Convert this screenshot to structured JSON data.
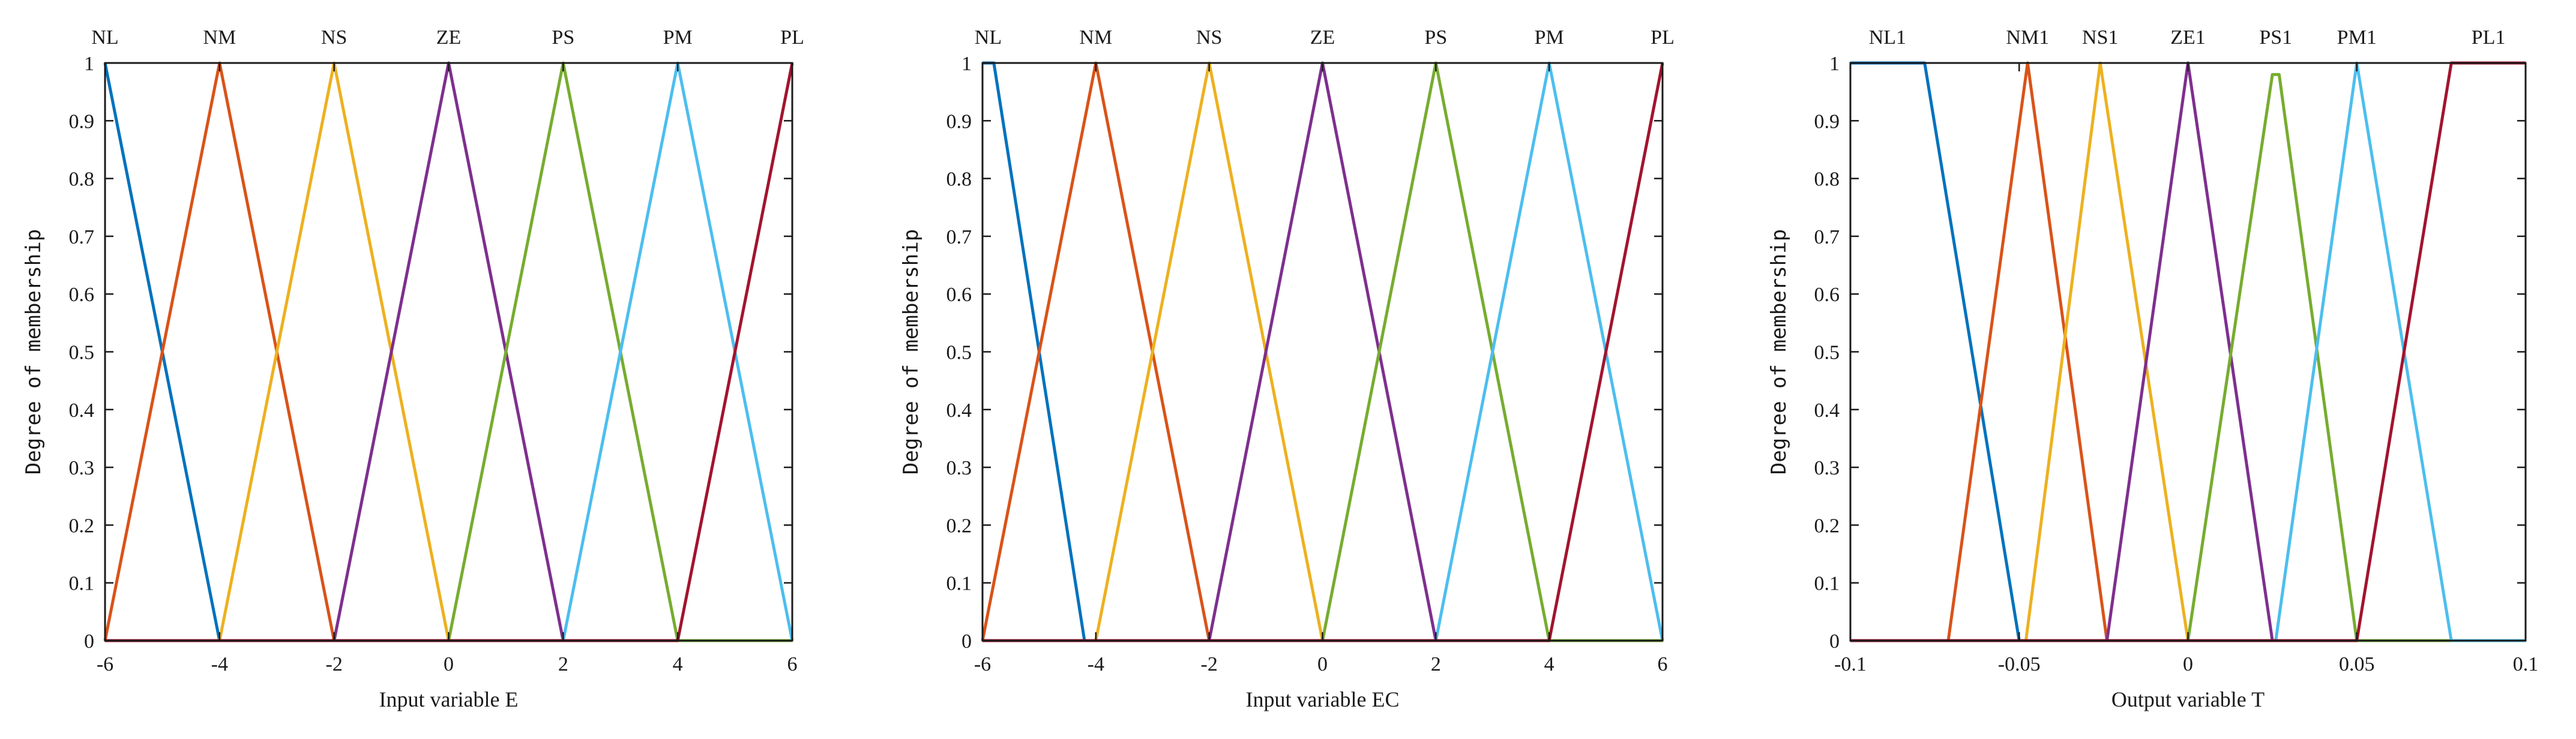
{
  "chart_data": [
    {
      "type": "line",
      "xlabel": "Input variable E",
      "ylabel": "Degree of membership",
      "xlim": [
        -6,
        6
      ],
      "ylim": [
        0,
        1
      ],
      "x_ticks": [
        -6,
        -4,
        -2,
        0,
        2,
        4,
        6
      ],
      "y_ticks": [
        0,
        0.1,
        0.2,
        0.3,
        0.4,
        0.5,
        0.6,
        0.7,
        0.8,
        0.9,
        1
      ],
      "grid": false,
      "series": [
        {
          "name": "NL",
          "color": "#0072BD",
          "points": [
            [
              -6,
              1
            ],
            [
              -4,
              0
            ],
            [
              6,
              0
            ]
          ]
        },
        {
          "name": "NM",
          "color": "#D95319",
          "points": [
            [
              -6,
              0
            ],
            [
              -4,
              1
            ],
            [
              -2,
              0
            ],
            [
              6,
              0
            ]
          ]
        },
        {
          "name": "NS",
          "color": "#EDB120",
          "points": [
            [
              -4,
              0
            ],
            [
              -2,
              1
            ],
            [
              0,
              0
            ]
          ]
        },
        {
          "name": "ZE",
          "color": "#7E2F8E",
          "points": [
            [
              -2,
              0
            ],
            [
              0,
              1
            ],
            [
              2,
              0
            ]
          ]
        },
        {
          "name": "PS",
          "color": "#77AC30",
          "points": [
            [
              0,
              0
            ],
            [
              2,
              1
            ],
            [
              4,
              0
            ],
            [
              6,
              0
            ]
          ]
        },
        {
          "name": "PM",
          "color": "#4DBEEE",
          "points": [
            [
              2,
              0
            ],
            [
              4,
              1
            ],
            [
              6,
              0
            ]
          ]
        },
        {
          "name": "PL",
          "color": "#A2142F",
          "points": [
            [
              -6,
              0
            ],
            [
              4,
              0
            ],
            [
              6,
              1
            ]
          ]
        }
      ]
    },
    {
      "type": "line",
      "xlabel": "Input variable EC",
      "ylabel": "Degree of membership",
      "xlim": [
        -6,
        6
      ],
      "ylim": [
        0,
        1
      ],
      "x_ticks": [
        -6,
        -4,
        -2,
        0,
        2,
        4,
        6
      ],
      "y_ticks": [
        0,
        0.1,
        0.2,
        0.3,
        0.4,
        0.5,
        0.6,
        0.7,
        0.8,
        0.9,
        1
      ],
      "grid": false,
      "series": [
        {
          "name": "NL",
          "color": "#0072BD",
          "points": [
            [
              -6,
              1
            ],
            [
              -5.8,
              1
            ],
            [
              -4.2,
              0
            ],
            [
              6,
              0
            ]
          ]
        },
        {
          "name": "NM",
          "color": "#D95319",
          "points": [
            [
              -6,
              0
            ],
            [
              -4,
              1
            ],
            [
              -2,
              0
            ],
            [
              6,
              0
            ]
          ]
        },
        {
          "name": "NS",
          "color": "#EDB120",
          "points": [
            [
              -4,
              0
            ],
            [
              -2,
              1
            ],
            [
              0,
              0
            ]
          ]
        },
        {
          "name": "ZE",
          "color": "#7E2F8E",
          "points": [
            [
              -2,
              0
            ],
            [
              0,
              1
            ],
            [
              2,
              0
            ]
          ]
        },
        {
          "name": "PS",
          "color": "#77AC30",
          "points": [
            [
              0,
              0
            ],
            [
              2,
              1
            ],
            [
              4,
              0
            ],
            [
              6,
              0
            ]
          ]
        },
        {
          "name": "PM",
          "color": "#4DBEEE",
          "points": [
            [
              2,
              0
            ],
            [
              4,
              1
            ],
            [
              6,
              0
            ]
          ]
        },
        {
          "name": "PL",
          "color": "#A2142F",
          "points": [
            [
              -6,
              0
            ],
            [
              4,
              0
            ],
            [
              6,
              1
            ]
          ]
        }
      ]
    },
    {
      "type": "line",
      "xlabel": "Output variable T",
      "ylabel": "Degree of membership",
      "xlim": [
        -0.1,
        0.1
      ],
      "ylim": [
        0,
        1
      ],
      "x_ticks": [
        -0.1,
        -0.05,
        0,
        0.05,
        0.1
      ],
      "y_ticks": [
        0,
        0.1,
        0.2,
        0.3,
        0.4,
        0.5,
        0.6,
        0.7,
        0.8,
        0.9,
        1
      ],
      "grid": false,
      "series": [
        {
          "name": "NL1",
          "color": "#0072BD",
          "points": [
            [
              -0.1,
              1
            ],
            [
              -0.078,
              1
            ],
            [
              -0.05,
              0
            ],
            [
              0.1,
              0
            ]
          ]
        },
        {
          "name": "NM1",
          "color": "#D95319",
          "points": [
            [
              -0.1,
              0
            ],
            [
              -0.071,
              0
            ],
            [
              -0.0475,
              1
            ],
            [
              -0.024,
              0
            ],
            [
              0.1,
              0
            ]
          ]
        },
        {
          "name": "NS1",
          "color": "#EDB120",
          "points": [
            [
              -0.048,
              0
            ],
            [
              -0.026,
              1
            ],
            [
              0,
              0
            ]
          ]
        },
        {
          "name": "ZE1",
          "color": "#7E2F8E",
          "points": [
            [
              -0.024,
              0
            ],
            [
              0,
              1
            ],
            [
              0.025,
              0
            ]
          ]
        },
        {
          "name": "PS1",
          "color": "#77AC30",
          "points": [
            [
              0,
              0
            ],
            [
              0.025,
              0.98
            ],
            [
              0.027,
              0.98
            ],
            [
              0.05,
              0
            ],
            [
              0.078,
              0
            ]
          ]
        },
        {
          "name": "PM1",
          "color": "#4DBEEE",
          "points": [
            [
              0.026,
              0
            ],
            [
              0.05,
              1
            ],
            [
              0.078,
              0
            ],
            [
              0.1,
              0
            ]
          ]
        },
        {
          "name": "PL1",
          "color": "#A2142F",
          "points": [
            [
              -0.1,
              0
            ],
            [
              0.05,
              0
            ],
            [
              0.078,
              1
            ],
            [
              0.1,
              1
            ]
          ]
        }
      ]
    }
  ]
}
